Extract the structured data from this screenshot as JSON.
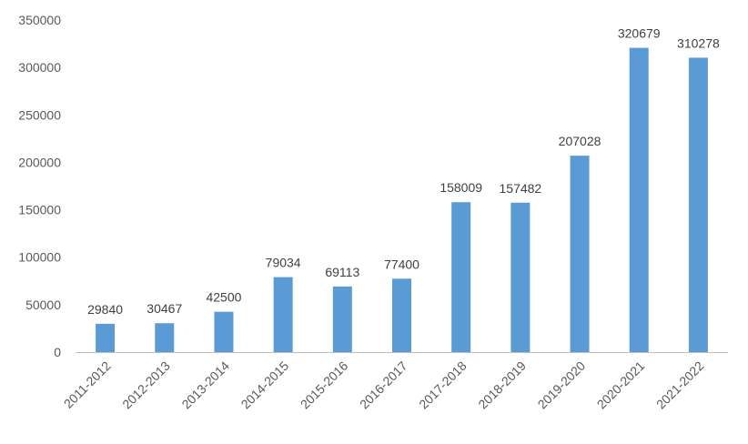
{
  "chart_data": {
    "type": "bar",
    "title": "",
    "xlabel": "",
    "ylabel": "",
    "categories": [
      "2011-2012",
      "2012-2013",
      "2013-2014",
      "2014-2015",
      "2015-2016",
      "2016-2017",
      "2017-2018",
      "2018-2019",
      "2019-2020",
      "2020-2021",
      "2021-2022"
    ],
    "values": [
      29840,
      30467,
      42500,
      79034,
      69113,
      77400,
      158009,
      157482,
      207028,
      320679,
      310278
    ],
    "data_labels": [
      "29840",
      "30467",
      "42500",
      "79034",
      "69113",
      "77400",
      "158009",
      "157482",
      "207028",
      "320679",
      "310278"
    ],
    "ylim": [
      0,
      350000
    ],
    "yticks": [
      0,
      50000,
      100000,
      150000,
      200000,
      250000,
      300000,
      350000
    ],
    "ytick_labels": [
      "0",
      "50000",
      "100000",
      "150000",
      "200000",
      "250000",
      "300000",
      "350000"
    ],
    "grid": false,
    "legend": "none",
    "bar_color": "#5B9BD5",
    "axis_color": "#BFBFBF"
  }
}
